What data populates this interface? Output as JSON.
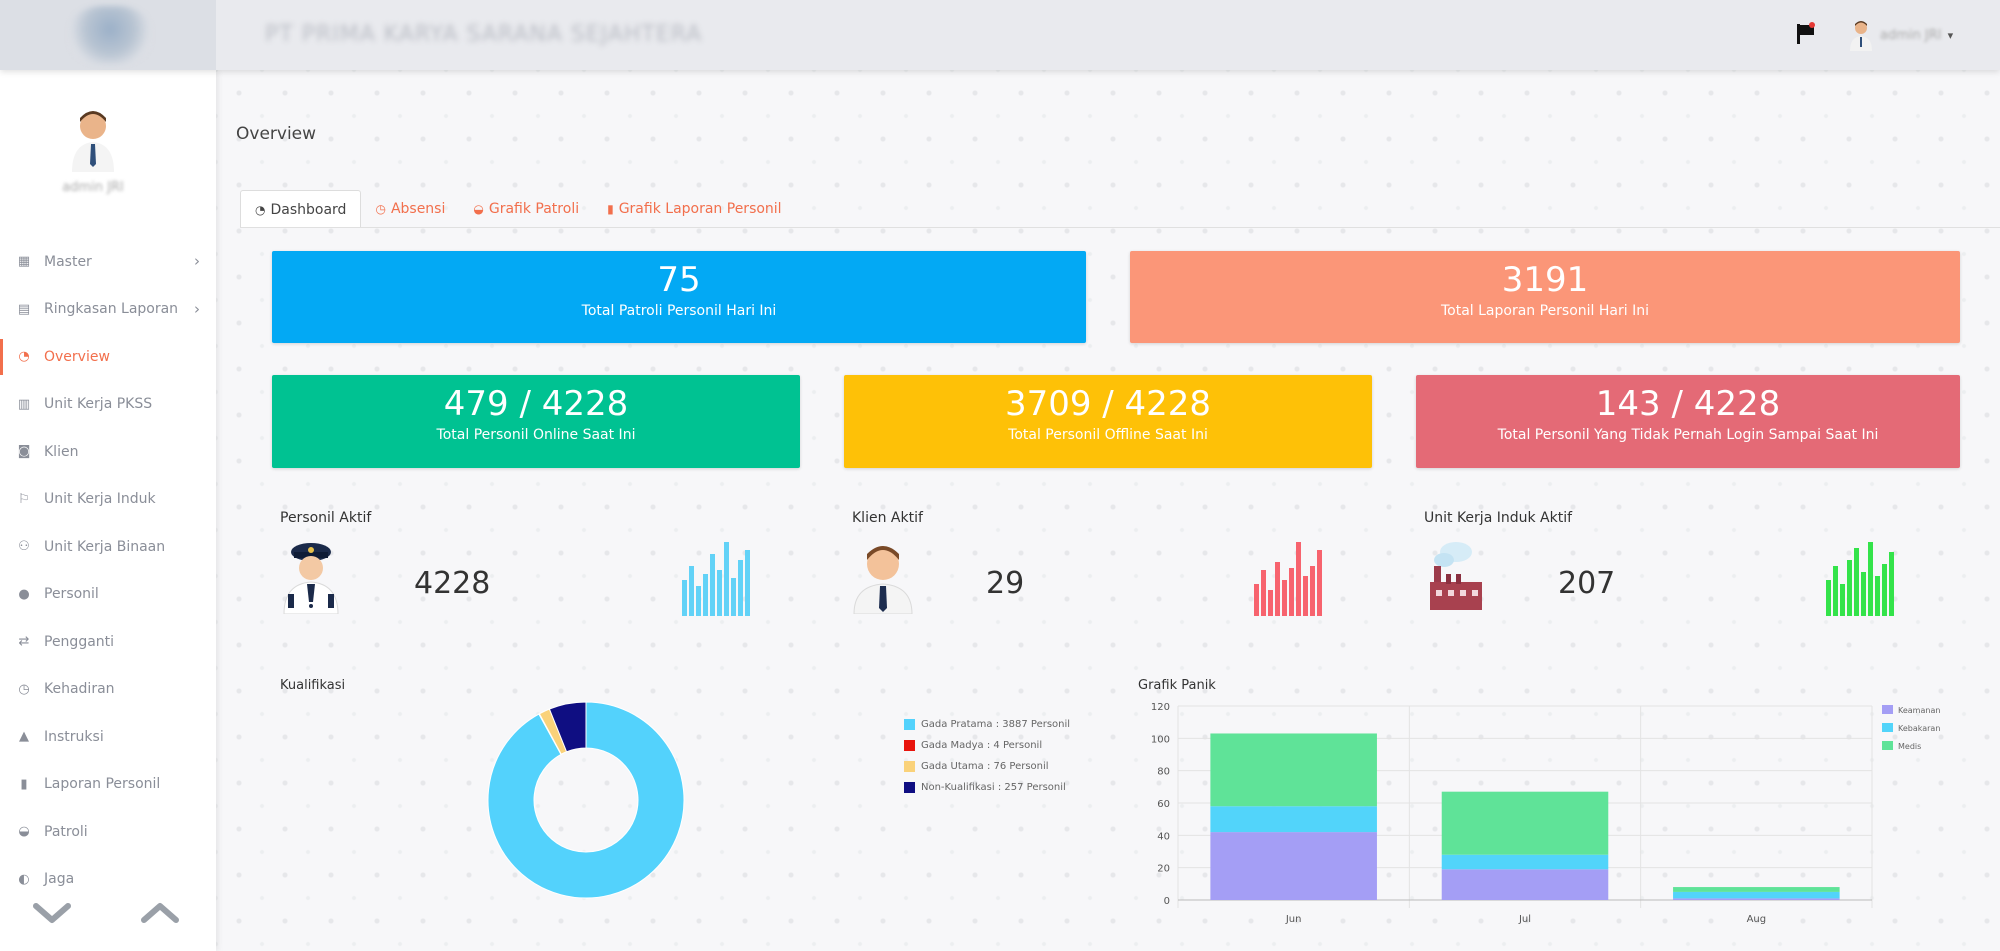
{
  "topbar": {
    "company": "PT PRIMA KARYA SARANA SEJAHTERA",
    "user_name": "admin JRI",
    "caret": "▾"
  },
  "sidebar": {
    "user_name": "admin JRI",
    "items": [
      {
        "label": "Master",
        "icon": "grid-icon",
        "glyph": "▦",
        "has_children": true,
        "active": false
      },
      {
        "label": "Ringkasan Laporan",
        "icon": "newspaper-icon",
        "glyph": "▤",
        "has_children": true,
        "active": false
      },
      {
        "label": "Overview",
        "icon": "dashboard-icon",
        "glyph": "◔",
        "has_children": false,
        "active": true
      },
      {
        "label": "Unit Kerja PKSS",
        "icon": "building-icon",
        "glyph": "▥",
        "has_children": false,
        "active": false
      },
      {
        "label": "Klien",
        "icon": "contact-card-icon",
        "glyph": "◙",
        "has_children": false,
        "active": false
      },
      {
        "label": "Unit Kerja Induk",
        "icon": "flag-outline-icon",
        "glyph": "⚐",
        "has_children": false,
        "active": false
      },
      {
        "label": "Unit Kerja Binaan",
        "icon": "users-icon",
        "glyph": "⚇",
        "has_children": false,
        "active": false
      },
      {
        "label": "Personil",
        "icon": "user-icon",
        "glyph": "●",
        "has_children": false,
        "active": false
      },
      {
        "label": "Pengganti",
        "icon": "exchange-icon",
        "glyph": "⇄",
        "has_children": false,
        "active": false
      },
      {
        "label": "Kehadiran",
        "icon": "clock-icon",
        "glyph": "◷",
        "has_children": false,
        "active": false
      },
      {
        "label": "Instruksi",
        "icon": "warning-icon",
        "glyph": "▲",
        "has_children": false,
        "active": false
      },
      {
        "label": "Laporan Personil",
        "icon": "file-icon",
        "glyph": "▮",
        "has_children": false,
        "active": false
      },
      {
        "label": "Patroli",
        "icon": "car-icon",
        "glyph": "◒",
        "has_children": false,
        "active": false
      },
      {
        "label": "Jaga",
        "icon": "shield-icon",
        "glyph": "◐",
        "has_children": false,
        "active": false
      }
    ],
    "chevron": "›"
  },
  "page": {
    "title": "Overview",
    "tabs": [
      {
        "label": "Dashboard",
        "icon": "dashboard-icon",
        "glyph": "◔",
        "active": true
      },
      {
        "label": "Absensi",
        "icon": "clock-icon",
        "glyph": "◷",
        "active": false
      },
      {
        "label": "Grafik Patroli",
        "icon": "car-icon",
        "glyph": "◒",
        "active": false
      },
      {
        "label": "Grafik Laporan Personil",
        "icon": "file-icon",
        "glyph": "▮",
        "active": false
      }
    ]
  },
  "stats": {
    "patroli": {
      "value": "75",
      "label": "Total Patroli Personil Hari Ini"
    },
    "laporan": {
      "value": "3191",
      "label": "Total Laporan Personil Hari Ini"
    },
    "online": {
      "value": "479 / 4228",
      "label": "Total Personil Online Saat Ini"
    },
    "offline": {
      "value": "3709 / 4228",
      "label": "Total Personil Offline Saat Ini"
    },
    "never_login": {
      "value": "143 / 4228",
      "label": "Total Personil Yang Tidak Pernah Login Sampai Saat Ini"
    }
  },
  "widgets": {
    "personil": {
      "title": "Personil Aktif",
      "value": "4228",
      "icon": "security-guard-icon",
      "bar_color": "#62d2f7"
    },
    "klien": {
      "title": "Klien Aktif",
      "value": "29",
      "icon": "client-person-icon",
      "bar_color": "#f7636e"
    },
    "unit": {
      "title": "Unit Kerja Induk Aktif",
      "value": "207",
      "icon": "factory-icon",
      "bar_color": "#34e34a"
    }
  },
  "chart_data": [
    {
      "type": "pie",
      "title": "Kualifikasi",
      "labels": [
        "Gada Pratama : 3887 Personil",
        "Gada Madya : 4 Personil",
        "Gada Utama : 76 Personil",
        "Non-Kualifikasi : 257 Personil"
      ],
      "values": [
        3887,
        4,
        76,
        257
      ],
      "colors": [
        "#53d2fc",
        "#e8140c",
        "#fad27a",
        "#0f0e82"
      ],
      "legend": "right"
    },
    {
      "type": "bar",
      "title": "Grafik Panik",
      "stacked": true,
      "categories": [
        "Jun",
        "Jul",
        "Aug"
      ],
      "series": [
        {
          "name": "Keamanan",
          "values": [
            42,
            19,
            1
          ],
          "color": "#a49ef5"
        },
        {
          "name": "Kebakaran",
          "values": [
            16,
            9,
            4
          ],
          "color": "#52d4fa"
        },
        {
          "name": "Medis",
          "values": [
            45,
            39,
            3
          ],
          "color": "#5fe398"
        }
      ],
      "yticks": [
        "0",
        "20",
        "40",
        "60",
        "80",
        "100",
        "120"
      ],
      "ylim": [
        0,
        120
      ],
      "grid": true,
      "legend": "top-right"
    }
  ]
}
